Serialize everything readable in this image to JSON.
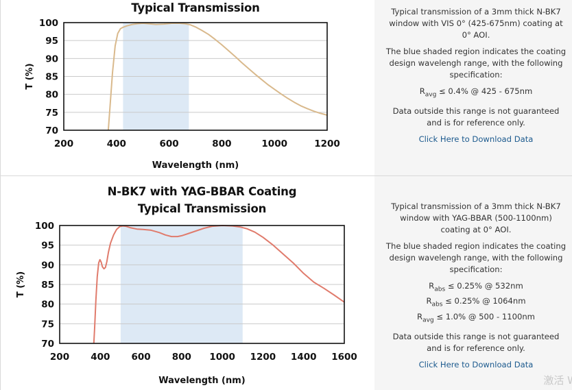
{
  "chart_data": [
    {
      "type": "line",
      "title_lines": [
        "",
        "Typical Transmission"
      ],
      "xlabel": "Wavelength (nm)",
      "ylabel": "T (%)",
      "xlim": [
        200,
        1200
      ],
      "ylim": [
        70,
        100
      ],
      "xticks": [
        200,
        400,
        600,
        800,
        1000,
        1200
      ],
      "yticks": [
        70,
        75,
        80,
        85,
        90,
        95,
        100
      ],
      "grid": "horizontal",
      "shaded_range": [
        425,
        675
      ],
      "line_color": "#d9b98c",
      "shade_color": "#dde9f5",
      "series": [
        {
          "x": [
            369,
            375,
            385,
            395,
            405,
            415,
            425,
            440,
            460,
            480,
            500,
            520,
            550,
            580,
            610,
            640,
            660,
            680,
            700,
            725,
            750,
            775,
            800,
            825,
            850,
            875,
            900,
            925,
            950,
            975,
            1000,
            1025,
            1050,
            1075,
            1100,
            1125,
            1150,
            1175,
            1200
          ],
          "y": [
            70,
            76,
            86,
            93.5,
            97,
            98.3,
            98.7,
            99.1,
            99.5,
            99.7,
            99.8,
            99.7,
            99.5,
            99.6,
            99.8,
            99.8,
            99.7,
            99.4,
            98.8,
            97.8,
            96.7,
            95.3,
            93.8,
            92.2,
            90.6,
            88.9,
            87.3,
            85.7,
            84.2,
            82.7,
            81.4,
            80.1,
            78.9,
            77.8,
            76.8,
            76.0,
            75.3,
            74.7,
            74.2
          ]
        }
      ]
    },
    {
      "type": "line",
      "title_lines": [
        "N-BK7 with YAG-BBAR Coating",
        "Typical Transmission"
      ],
      "xlabel": "Wavelength (nm)",
      "ylabel": "T (%)",
      "xlim": [
        200,
        1600
      ],
      "ylim": [
        70,
        100
      ],
      "xticks": [
        200,
        400,
        600,
        800,
        1000,
        1200,
        1400,
        1600
      ],
      "yticks": [
        70,
        75,
        80,
        85,
        90,
        95,
        100
      ],
      "grid": "horizontal",
      "shaded_range": [
        500,
        1100
      ],
      "line_color": "#e07b6c",
      "shade_color": "#dde9f5",
      "series": [
        {
          "x": [
            368,
            372,
            378,
            385,
            392,
            398,
            404,
            410,
            418,
            425,
            432,
            440,
            450,
            465,
            480,
            495,
            510,
            525,
            550,
            580,
            610,
            650,
            690,
            720,
            750,
            780,
            800,
            830,
            870,
            910,
            950,
            1000,
            1050,
            1090,
            1120,
            1160,
            1200,
            1250,
            1300,
            1350,
            1400,
            1450,
            1500,
            1550,
            1600
          ],
          "y": [
            70,
            74,
            81,
            87,
            90.5,
            91.3,
            90.7,
            89.5,
            89.0,
            89.3,
            90.8,
            93.2,
            95.5,
            97.6,
            99.0,
            99.7,
            99.9,
            99.8,
            99.4,
            99.1,
            99.0,
            98.8,
            98.2,
            97.6,
            97.2,
            97.2,
            97.4,
            97.9,
            98.6,
            99.3,
            99.8,
            100,
            99.9,
            99.6,
            99.2,
            98.3,
            97.0,
            95.0,
            92.7,
            90.4,
            87.8,
            85.6,
            84.0,
            82.3,
            80.5
          ]
        }
      ]
    }
  ],
  "descriptions": [
    {
      "p1": "Typical transmission of a 3mm thick N-BK7 window with VIS 0° (425-675nm) coating at 0° AOI.",
      "p2": "The blue shaded region indicates the coating design wavelengh range, with the following specification:",
      "specs": [
        {
          "sym": "R",
          "sub": "avg",
          "text": " ≤ 0.4% @ 425 - 675nm"
        }
      ],
      "p3": "Data outside this range is not guaranteed and is for reference only.",
      "link": "Click Here to Download Data"
    },
    {
      "p1": "Typical transmission of a 3mm thick N-BK7 window with YAG-BBAR (500-1100nm) coating at 0° AOI.",
      "p2": "The blue shaded region indicates the coating design wavelengh range, with the following specification:",
      "specs": [
        {
          "sym": "R",
          "sub": "abs",
          "text": " ≤ 0.25% @ 532nm"
        },
        {
          "sym": "R",
          "sub": "abs",
          "text": " ≤ 0.25% @ 1064nm"
        },
        {
          "sym": "R",
          "sub": "avg",
          "text": " ≤ 1.0% @ 500 - 1100nm"
        }
      ],
      "p3": "Data outside this range is not guaranteed and is for reference only.",
      "link": "Click Here to Download Data"
    }
  ],
  "watermark": "激活 W"
}
